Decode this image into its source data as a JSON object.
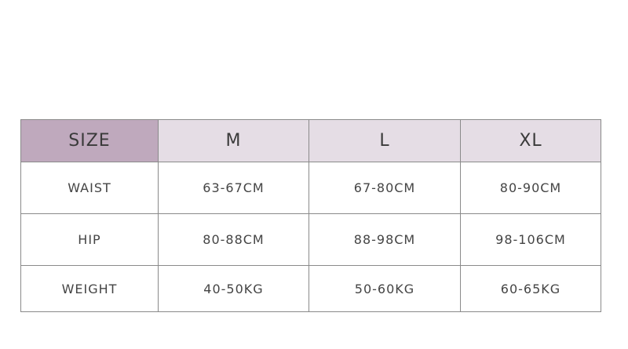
{
  "table": {
    "header": [
      "SIZE",
      "M",
      "L",
      "XL"
    ],
    "rows": [
      [
        "WAIST",
        "63-67CM",
        "67-80CM",
        "80-90CM"
      ],
      [
        "HIP",
        "80-88CM",
        "88-98CM",
        "98-106CM"
      ],
      [
        "WEIGHT",
        "40-50KG",
        "50-60KG",
        "60-65KG"
      ]
    ]
  },
  "colors": {
    "size_header": "#bfa9bd",
    "header": "#e5dde5"
  }
}
